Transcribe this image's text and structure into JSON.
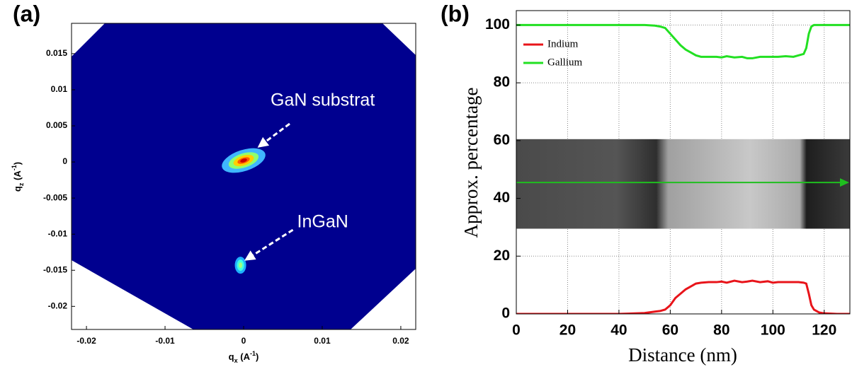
{
  "chart_data": [
    {
      "type": "map",
      "panel_label": "(a)",
      "x_label": {
        "symbol": "q",
        "subscript": "x",
        "unit": " (A",
        "exponent": "-1",
        "close": ")"
      },
      "y_label": {
        "symbol": "q",
        "subscript": "z",
        "unit": " (A",
        "exponent": "-1",
        "close": ")"
      },
      "xlim": [
        -0.0219,
        0.0219
      ],
      "ylim": [
        -0.0232,
        0.0192
      ],
      "xticks": [
        -0.02,
        -0.01,
        0,
        0.01,
        0.02
      ],
      "yticks": [
        -0.02,
        -0.015,
        -0.01,
        -0.005,
        0,
        0.005,
        0.01,
        0.015
      ],
      "background": "#00008f",
      "peaks": [
        {
          "name": "GaN substrat",
          "x": 0,
          "y": 0.0002
        },
        {
          "name": "InGaN",
          "x": -0.0004,
          "y": -0.0143
        }
      ]
    },
    {
      "type": "line",
      "panel_label": "(b)",
      "x_label": "Distance (nm)",
      "y_label": "Approx. percentage",
      "xlim": [
        0,
        130
      ],
      "ylim": [
        0,
        105
      ],
      "xticks": [
        0,
        20,
        40,
        60,
        80,
        100,
        120
      ],
      "yticks": [
        0,
        20,
        40,
        60,
        80,
        100
      ],
      "grid": true,
      "legend": "upper-left",
      "x": [
        0,
        10,
        20,
        30,
        40,
        50,
        54,
        56,
        58,
        60,
        62,
        64,
        66,
        68,
        70,
        72,
        75,
        78,
        80,
        82,
        85,
        88,
        90,
        92,
        95,
        98,
        100,
        102,
        105,
        108,
        110,
        112,
        113,
        114,
        115,
        116,
        118,
        120,
        125,
        130
      ],
      "series": [
        {
          "name": "Indium",
          "color": "#e8141a",
          "values": [
            0,
            0,
            0,
            0,
            0,
            0.3,
            0.8,
            1,
            1.5,
            3,
            5.5,
            7,
            8.5,
            9.5,
            10.5,
            10.8,
            11,
            11,
            11.2,
            10.8,
            11.5,
            11,
            11.2,
            11.5,
            11,
            11.3,
            10.8,
            11,
            11,
            11,
            11,
            10.8,
            10.5,
            7,
            3,
            1.5,
            0.5,
            0.2,
            0,
            0
          ]
        },
        {
          "name": "Gallium",
          "color": "#22e022",
          "values": [
            100,
            100,
            100,
            100,
            100,
            100,
            99.8,
            99.5,
            99,
            97,
            95,
            93,
            91.5,
            90.5,
            89.5,
            89,
            89,
            89,
            88.8,
            89.2,
            88.8,
            89,
            88.5,
            88.5,
            89,
            89,
            89,
            89,
            89.2,
            89,
            89.5,
            90,
            92,
            97,
            99.5,
            100,
            100,
            100,
            100,
            100
          ]
        }
      ],
      "inset_y": [
        29.5,
        60.5
      ],
      "profile_y": 45.5,
      "profile_color": "#1fbf1f"
    }
  ]
}
